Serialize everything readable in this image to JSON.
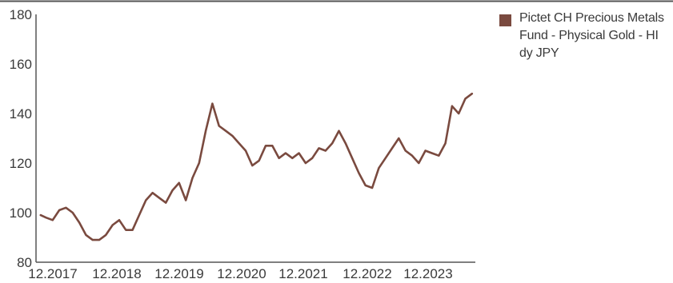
{
  "chart_data": {
    "type": "line",
    "title": "",
    "xlabel": "",
    "ylabel": "",
    "ylim": [
      80,
      180
    ],
    "yticks": [
      80,
      100,
      120,
      140,
      160,
      180
    ],
    "xticks": [
      "12.2017",
      "12.2018",
      "12.2019",
      "12.2020",
      "12.2021",
      "12.2022",
      "12.2023"
    ],
    "grid": false,
    "legend_position": "top-right",
    "series": [
      {
        "name": "Pictet CH Precious Metals Fund - Physical Gold - HI dy JPY",
        "color": "#7a4a3f",
        "x": [
          2017.92,
          2018.0,
          2018.1,
          2018.2,
          2018.3,
          2018.4,
          2018.5,
          2018.6,
          2018.7,
          2018.8,
          2018.9,
          2019.0,
          2019.1,
          2019.2,
          2019.3,
          2019.4,
          2019.5,
          2019.6,
          2019.7,
          2019.8,
          2019.9,
          2020.0,
          2020.1,
          2020.2,
          2020.3,
          2020.4,
          2020.5,
          2020.6,
          2020.7,
          2020.8,
          2020.9,
          2021.0,
          2021.1,
          2021.2,
          2021.3,
          2021.4,
          2021.5,
          2021.6,
          2021.7,
          2021.8,
          2021.9,
          2022.0,
          2022.1,
          2022.2,
          2022.3,
          2022.4,
          2022.5,
          2022.6,
          2022.7,
          2022.8,
          2022.9,
          2023.0,
          2023.1,
          2023.2,
          2023.3,
          2023.4,
          2023.5,
          2023.6,
          2023.7,
          2023.8,
          2023.9,
          2024.0,
          2024.1,
          2024.2,
          2024.3,
          2024.4
        ],
        "y": [
          99,
          98,
          97,
          101,
          102,
          100,
          96,
          91,
          89,
          89,
          91,
          95,
          97,
          93,
          93,
          99,
          105,
          108,
          106,
          104,
          109,
          112,
          105,
          114,
          120,
          133,
          144,
          135,
          133,
          131,
          128,
          125,
          119,
          121,
          127,
          127,
          122,
          124,
          122,
          124,
          120,
          122,
          126,
          125,
          128,
          133,
          128,
          122,
          116,
          111,
          110,
          118,
          122,
          126,
          130,
          125,
          123,
          120,
          125,
          124,
          123,
          128,
          143,
          140,
          146,
          148
        ]
      }
    ]
  }
}
